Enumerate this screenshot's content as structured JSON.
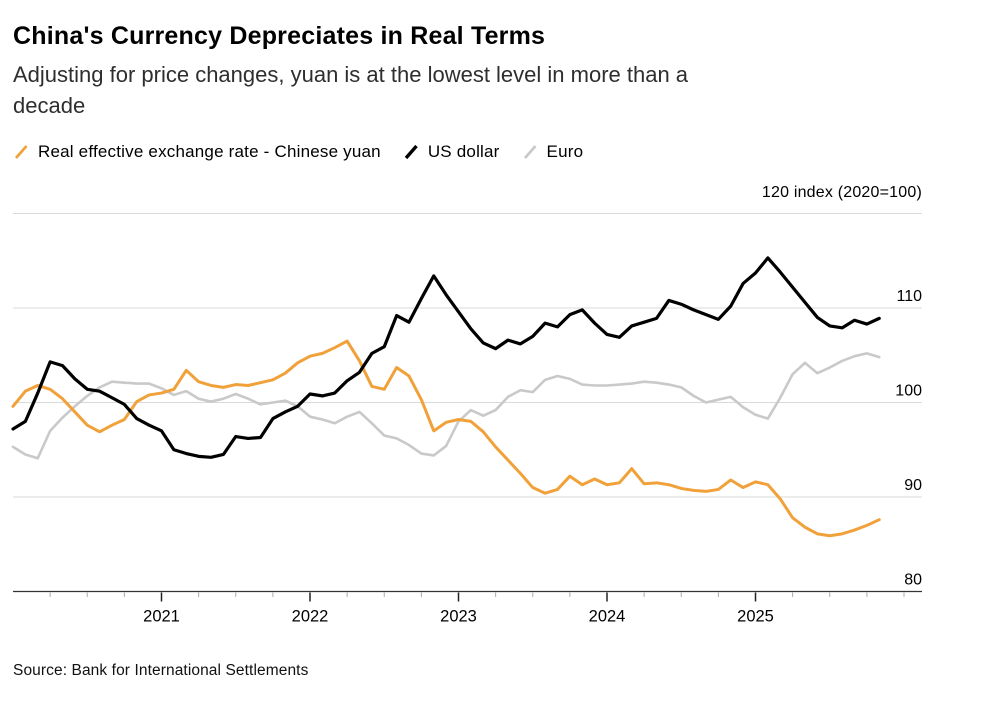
{
  "header": {
    "title": "China's Currency Depreciates in Real Terms",
    "subtitle": "Adjusting for price changes, yuan is at the lowest level in more than a decade"
  },
  "legend": {
    "items": [
      {
        "label": "Real effective exchange rate - Chinese yuan"
      },
      {
        "label": "US dollar"
      },
      {
        "label": "Euro"
      }
    ]
  },
  "axis_note": "120 index (2020=100)",
  "source": "Source: Bank for International Settlements",
  "chart_data": {
    "type": "line",
    "title": "China's Currency Depreciates in Real Terms",
    "x_unit": "month",
    "x_start": "2020-01",
    "x_end": "2025-11",
    "x_tick_labels": [
      "2021",
      "2022",
      "2023",
      "2024",
      "2025"
    ],
    "y_gridlines": [
      120,
      110,
      100,
      90
    ],
    "y_tick_display": [
      110,
      100,
      90,
      80
    ],
    "ylim": [
      79.5,
      121
    ],
    "grid": true,
    "legend_position": "top",
    "unit_label": "120 index (2020=100)",
    "axis_color": "#333333",
    "grid_color": "#D9D9D9",
    "series": [
      {
        "id": "cny",
        "name": "Real effective exchange rate - Chinese yuan",
        "color": "#F1A13A",
        "width": 3,
        "values": [
          99.6,
          101.2,
          101.8,
          101.4,
          100.4,
          99.0,
          97.6,
          96.9,
          97.6,
          98.2,
          100.1,
          100.8,
          101.0,
          101.4,
          103.4,
          102.2,
          101.8,
          101.6,
          101.9,
          101.8,
          102.1,
          102.4,
          103.1,
          104.2,
          104.9,
          105.2,
          105.8,
          106.5,
          104.4,
          101.7,
          101.4,
          103.7,
          102.8,
          100.3,
          97.0,
          97.9,
          98.2,
          98.0,
          96.9,
          95.3,
          93.9,
          92.5,
          91.0,
          90.4,
          90.8,
          92.2,
          91.3,
          91.9,
          91.3,
          91.5,
          93.0,
          91.4,
          91.5,
          91.3,
          90.9,
          90.7,
          90.6,
          90.8,
          91.8,
          91.0,
          91.6,
          91.3,
          89.8,
          87.8,
          86.8,
          86.1,
          85.9,
          86.1,
          86.5,
          87.0,
          87.6
        ]
      },
      {
        "id": "usd",
        "name": "US dollar",
        "color": "#000000",
        "width": 3.2,
        "values": [
          97.2,
          98.0,
          101.0,
          104.3,
          103.9,
          102.5,
          101.4,
          101.2,
          100.5,
          99.8,
          98.3,
          97.6,
          97.0,
          95.0,
          94.6,
          94.3,
          94.2,
          94.5,
          96.4,
          96.2,
          96.3,
          98.3,
          99.0,
          99.6,
          100.9,
          100.7,
          101.0,
          102.3,
          103.2,
          105.2,
          105.9,
          109.2,
          108.5,
          111.0,
          113.4,
          111.4,
          109.6,
          107.8,
          106.3,
          105.7,
          106.6,
          106.2,
          107.0,
          108.4,
          108.0,
          109.3,
          109.8,
          108.4,
          107.2,
          106.9,
          108.1,
          108.5,
          108.9,
          110.8,
          110.4,
          109.8,
          109.3,
          108.8,
          110.2,
          112.6,
          113.7,
          115.3,
          113.8,
          112.2,
          110.6,
          109.0,
          108.1,
          107.9,
          108.7,
          108.3,
          108.9
        ]
      },
      {
        "id": "eur",
        "name": "Euro",
        "color": "#C9C9C9",
        "width": 2.6,
        "values": [
          95.3,
          94.5,
          94.1,
          97.0,
          98.4,
          99.6,
          100.7,
          101.6,
          102.2,
          102.1,
          102.0,
          102.0,
          101.5,
          100.8,
          101.2,
          100.4,
          100.1,
          100.4,
          100.9,
          100.4,
          99.8,
          100.0,
          100.2,
          99.6,
          98.5,
          98.2,
          97.8,
          98.5,
          99.0,
          97.8,
          96.5,
          96.2,
          95.5,
          94.6,
          94.4,
          95.4,
          98.0,
          99.2,
          98.6,
          99.2,
          100.6,
          101.3,
          101.1,
          102.4,
          102.8,
          102.5,
          101.9,
          101.8,
          101.8,
          101.9,
          102.0,
          102.2,
          102.1,
          101.9,
          101.6,
          100.7,
          100.0,
          100.3,
          100.6,
          99.5,
          98.7,
          98.3,
          100.5,
          103.0,
          104.2,
          103.1,
          103.7,
          104.4,
          104.9,
          105.2,
          104.8
        ]
      }
    ]
  }
}
